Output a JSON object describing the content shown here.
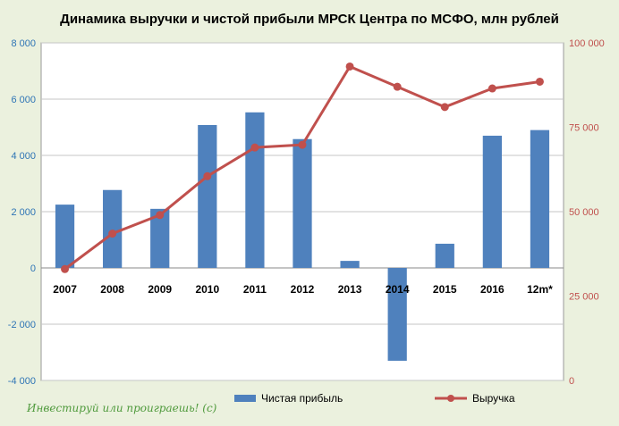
{
  "chart_data": {
    "type": "bar+line",
    "title": "Динамика выручки и чистой прибыли МРСК Центра по МСФО, млн рублей",
    "categories": [
      "2007",
      "2008",
      "2009",
      "2010",
      "2011",
      "2012",
      "2013",
      "2014",
      "2015",
      "2016",
      "12m*"
    ],
    "series": [
      {
        "name": "Чистая прибыль",
        "type": "bar",
        "axis": "left",
        "color": "#4f81bd",
        "values": [
          2250,
          2770,
          2100,
          5080,
          5530,
          4580,
          250,
          -3300,
          860,
          4700,
          4900
        ]
      },
      {
        "name": "Выручка",
        "type": "line",
        "axis": "right",
        "color": "#c0504d",
        "values": [
          33000,
          43500,
          49000,
          60500,
          69000,
          69800,
          93000,
          87000,
          81000,
          86500,
          88500
        ]
      }
    ],
    "left_axis": {
      "min": -4000,
      "max": 8000,
      "step": 2000,
      "tick_labels": [
        "-4 000",
        "-2 000",
        "0",
        "2 000",
        "4 000",
        "6 000",
        "8 000"
      ]
    },
    "right_axis": {
      "min": 0,
      "max": 100000,
      "step": 25000,
      "tick_labels": [
        "0",
        "25 000",
        "50 000",
        "75 000",
        "100 000"
      ]
    },
    "grid": true,
    "legend_position": "bottom"
  },
  "watermark": "Инвестируй или проиграешь! (c)",
  "colors": {
    "background": "#ebf1de",
    "plot_area": "#ffffff",
    "grid": "#c6c6c6"
  }
}
